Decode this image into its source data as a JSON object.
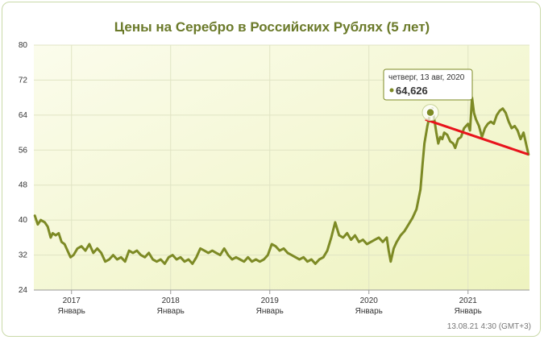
{
  "chart_data": {
    "type": "line",
    "title": "Цены на Серебро в Российских Рублях (5 лет)",
    "xlabel": "",
    "ylabel": "",
    "ylim": [
      24,
      80
    ],
    "y_ticks": [
      24,
      32,
      40,
      48,
      56,
      64,
      72,
      80
    ],
    "x_ticks": [
      {
        "year": "2017",
        "month": "Январь",
        "t": 2017.0
      },
      {
        "year": "2018",
        "month": "Январь",
        "t": 2018.0
      },
      {
        "year": "2019",
        "month": "Январь",
        "t": 2019.0
      },
      {
        "year": "2020",
        "month": "Январь",
        "t": 2020.0
      },
      {
        "year": "2021",
        "month": "Январь",
        "t": 2021.0
      }
    ],
    "xlim": [
      2016.62,
      2021.62
    ],
    "series": [
      {
        "color": "#7d8a25",
        "points": [
          [
            2016.63,
            41.0
          ],
          [
            2016.66,
            39.0
          ],
          [
            2016.69,
            40.0
          ],
          [
            2016.73,
            39.5
          ],
          [
            2016.76,
            38.5
          ],
          [
            2016.79,
            36.0
          ],
          [
            2016.81,
            37.0
          ],
          [
            2016.84,
            36.5
          ],
          [
            2016.87,
            37.0
          ],
          [
            2016.9,
            35.0
          ],
          [
            2016.93,
            34.5
          ],
          [
            2016.96,
            33.0
          ],
          [
            2016.99,
            31.5
          ],
          [
            2017.02,
            32.0
          ],
          [
            2017.06,
            33.5
          ],
          [
            2017.1,
            34.0
          ],
          [
            2017.14,
            33.0
          ],
          [
            2017.18,
            34.5
          ],
          [
            2017.22,
            32.5
          ],
          [
            2017.26,
            33.5
          ],
          [
            2017.3,
            32.5
          ],
          [
            2017.34,
            30.5
          ],
          [
            2017.38,
            31.0
          ],
          [
            2017.42,
            32.0
          ],
          [
            2017.46,
            31.0
          ],
          [
            2017.5,
            31.5
          ],
          [
            2017.54,
            30.5
          ],
          [
            2017.58,
            33.0
          ],
          [
            2017.62,
            32.5
          ],
          [
            2017.66,
            33.0
          ],
          [
            2017.7,
            32.0
          ],
          [
            2017.74,
            31.5
          ],
          [
            2017.78,
            32.5
          ],
          [
            2017.82,
            31.0
          ],
          [
            2017.86,
            30.5
          ],
          [
            2017.9,
            31.0
          ],
          [
            2017.94,
            30.0
          ],
          [
            2017.98,
            31.5
          ],
          [
            2018.02,
            32.0
          ],
          [
            2018.06,
            31.0
          ],
          [
            2018.1,
            31.5
          ],
          [
            2018.14,
            30.5
          ],
          [
            2018.18,
            31.0
          ],
          [
            2018.22,
            30.0
          ],
          [
            2018.26,
            31.5
          ],
          [
            2018.3,
            33.5
          ],
          [
            2018.34,
            33.0
          ],
          [
            2018.38,
            32.5
          ],
          [
            2018.42,
            33.0
          ],
          [
            2018.46,
            32.5
          ],
          [
            2018.5,
            32.0
          ],
          [
            2018.54,
            33.5
          ],
          [
            2018.58,
            32.0
          ],
          [
            2018.62,
            31.0
          ],
          [
            2018.66,
            31.5
          ],
          [
            2018.7,
            31.0
          ],
          [
            2018.74,
            30.5
          ],
          [
            2018.78,
            31.5
          ],
          [
            2018.82,
            30.5
          ],
          [
            2018.86,
            31.0
          ],
          [
            2018.9,
            30.5
          ],
          [
            2018.94,
            31.0
          ],
          [
            2018.98,
            32.0
          ],
          [
            2019.02,
            34.5
          ],
          [
            2019.06,
            34.0
          ],
          [
            2019.1,
            33.0
          ],
          [
            2019.14,
            33.5
          ],
          [
            2019.18,
            32.5
          ],
          [
            2019.22,
            32.0
          ],
          [
            2019.26,
            31.5
          ],
          [
            2019.3,
            31.0
          ],
          [
            2019.34,
            31.5
          ],
          [
            2019.38,
            30.5
          ],
          [
            2019.42,
            31.0
          ],
          [
            2019.46,
            30.0
          ],
          [
            2019.5,
            31.0
          ],
          [
            2019.54,
            31.5
          ],
          [
            2019.58,
            33.0
          ],
          [
            2019.62,
            36.0
          ],
          [
            2019.66,
            39.5
          ],
          [
            2019.7,
            36.5
          ],
          [
            2019.74,
            36.0
          ],
          [
            2019.78,
            37.0
          ],
          [
            2019.82,
            35.5
          ],
          [
            2019.86,
            36.5
          ],
          [
            2019.9,
            35.0
          ],
          [
            2019.94,
            35.5
          ],
          [
            2019.98,
            34.5
          ],
          [
            2020.02,
            35.0
          ],
          [
            2020.06,
            35.5
          ],
          [
            2020.1,
            36.0
          ],
          [
            2020.14,
            35.0
          ],
          [
            2020.18,
            36.0
          ],
          [
            2020.2,
            33.0
          ],
          [
            2020.22,
            30.5
          ],
          [
            2020.25,
            33.5
          ],
          [
            2020.28,
            35.0
          ],
          [
            2020.32,
            36.5
          ],
          [
            2020.36,
            37.5
          ],
          [
            2020.4,
            39.0
          ],
          [
            2020.44,
            40.5
          ],
          [
            2020.48,
            42.5
          ],
          [
            2020.52,
            47.0
          ],
          [
            2020.54,
            52.5
          ],
          [
            2020.56,
            57.5
          ],
          [
            2020.59,
            61.5
          ],
          [
            2020.62,
            64.6
          ],
          [
            2020.64,
            65.5
          ],
          [
            2020.66,
            63.0
          ],
          [
            2020.68,
            60.0
          ],
          [
            2020.7,
            57.5
          ],
          [
            2020.72,
            59.0
          ],
          [
            2020.74,
            58.5
          ],
          [
            2020.76,
            60.0
          ],
          [
            2020.79,
            59.5
          ],
          [
            2020.82,
            58.0
          ],
          [
            2020.85,
            57.5
          ],
          [
            2020.87,
            56.5
          ],
          [
            2020.9,
            58.5
          ],
          [
            2020.93,
            59.0
          ],
          [
            2020.96,
            61.0
          ],
          [
            2021.0,
            62.0
          ],
          [
            2021.02,
            60.5
          ],
          [
            2021.04,
            68.0
          ],
          [
            2021.06,
            64.5
          ],
          [
            2021.08,
            63.0
          ],
          [
            2021.11,
            61.5
          ],
          [
            2021.14,
            59.0
          ],
          [
            2021.17,
            61.0
          ],
          [
            2021.2,
            62.0
          ],
          [
            2021.23,
            62.5
          ],
          [
            2021.26,
            62.0
          ],
          [
            2021.29,
            64.0
          ],
          [
            2021.32,
            65.0
          ],
          [
            2021.35,
            65.5
          ],
          [
            2021.38,
            64.5
          ],
          [
            2021.41,
            62.5
          ],
          [
            2021.44,
            61.0
          ],
          [
            2021.47,
            61.5
          ],
          [
            2021.5,
            60.5
          ],
          [
            2021.53,
            58.5
          ],
          [
            2021.56,
            60.0
          ],
          [
            2021.59,
            57.0
          ],
          [
            2021.61,
            55.0
          ]
        ]
      }
    ],
    "trend_line": {
      "color": "#e8141c",
      "from": [
        2020.57,
        63.0
      ],
      "to": [
        2021.61,
        55.0
      ]
    },
    "highlight": {
      "t": 2020.62,
      "value": 64.6
    },
    "tooltip": {
      "date": "четверг, 13 авг, 2020",
      "value": "64,626"
    },
    "grid": true,
    "plot_background": "#f7f9d9",
    "footer": "13.08.21 4:30 (GMT+3)"
  }
}
